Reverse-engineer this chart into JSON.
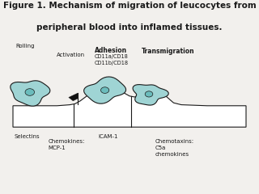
{
  "title_line1": "Figure 1. Mechanism of migration of leucocytes from",
  "title_line2": "peripheral blood into inflamed tissues.",
  "title_fontsize": 7.5,
  "bg_color": "#f2f0ed",
  "label_rolling": "Rolling",
  "label_activation": "Activation",
  "label_adhesion": "Adhesion",
  "label_adhesion_sub": "CD11a/CD18\nCD11b/CD18",
  "label_transmigration": "Transmigration",
  "label_selectins": "Selectins",
  "label_chemokines": "Chemokines:\nMCP-1",
  "label_icam": "ICAM-1",
  "label_chemotaxins": "Chemotaxins:\nC5a\nchemokines",
  "cell_color": "#9fd4d4",
  "nucleus_color": "#6bbcbc",
  "wall_color": "#ffffff",
  "line_color": "#1a1a1a",
  "label_fontsize": 5.0,
  "label_bold_fontsize": 5.5
}
